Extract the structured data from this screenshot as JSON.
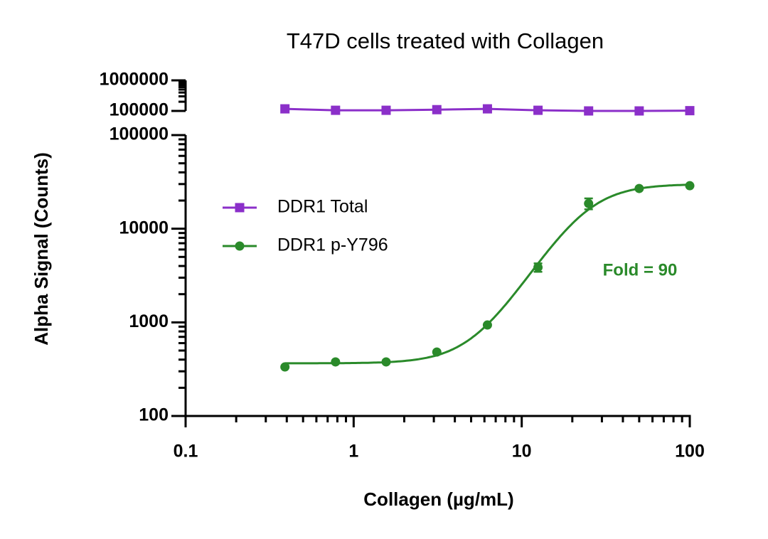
{
  "chart_data": {
    "type": "line",
    "title": "T47D cells treated with Collagen",
    "x_label": "Collagen (µg/mL)",
    "y_label": "Alpha Signal (Counts)",
    "x": [
      0.39,
      0.78,
      1.56,
      3.125,
      6.25,
      12.5,
      25,
      50,
      100
    ],
    "xlim": [
      0.1,
      100
    ],
    "xticks": [
      0.1,
      1,
      10,
      100
    ],
    "xscale": "log",
    "ylim": [
      100,
      100000
    ],
    "yticks": [
      100,
      1000,
      10000,
      100000
    ],
    "yscale": "log",
    "ylim_upper": [
      100000,
      1000000
    ],
    "yticks_upper": [
      100000,
      1000000
    ],
    "series": [
      {
        "name": "DDR1 Total",
        "color": "#8b2fc9",
        "marker": "square",
        "axis": "upper",
        "values": [
          117000,
          105000,
          105000,
          110000,
          117000,
          105000,
          100000,
          100000,
          102000
        ]
      },
      {
        "name": "DDR1 p-Y796",
        "color": "#2a8a2a",
        "marker": "circle",
        "values": [
          334,
          378,
          378,
          482,
          937,
          3870,
          18600,
          26900,
          28800
        ],
        "errors": [
          null,
          null,
          null,
          null,
          null,
          400,
          2500,
          null,
          null
        ],
        "fit": {
          "bottom": 365,
          "top": 30000,
          "ec50": 24,
          "hill": 2.9
        }
      }
    ],
    "annotation": "Fold = 90",
    "legend": "upper left"
  }
}
